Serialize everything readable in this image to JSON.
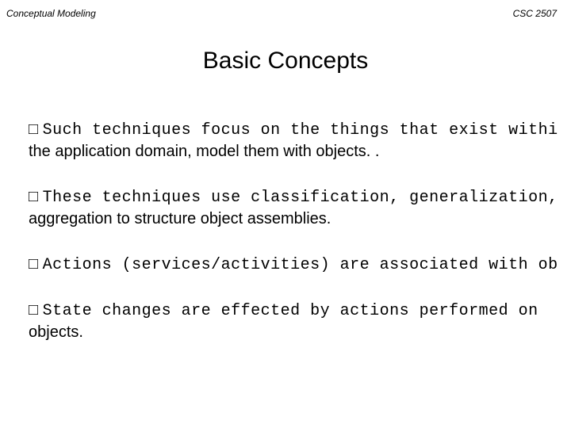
{
  "header": {
    "left": "Conceptual Modeling",
    "right": "CSC 2507"
  },
  "title": "Basic Concepts",
  "bullets": [
    {
      "lead": "Such techniques focus on the things that exist withi",
      "cont": "the application domain, model them with objects. ."
    },
    {
      "lead": "These techniques use classification, generalization, ",
      "cont": "aggregation to structure object assemblies."
    },
    {
      "lead": "Actions (services/activities) are associated with ob",
      "cont": ""
    },
    {
      "lead": "State changes are effected by actions performed on",
      "cont": "objects."
    }
  ],
  "style": {
    "background_color": "#ffffff",
    "text_color": "#000000",
    "title_fontsize": 30,
    "body_fontsize": 20,
    "header_fontsize": 12,
    "bullet_marker": "□"
  }
}
